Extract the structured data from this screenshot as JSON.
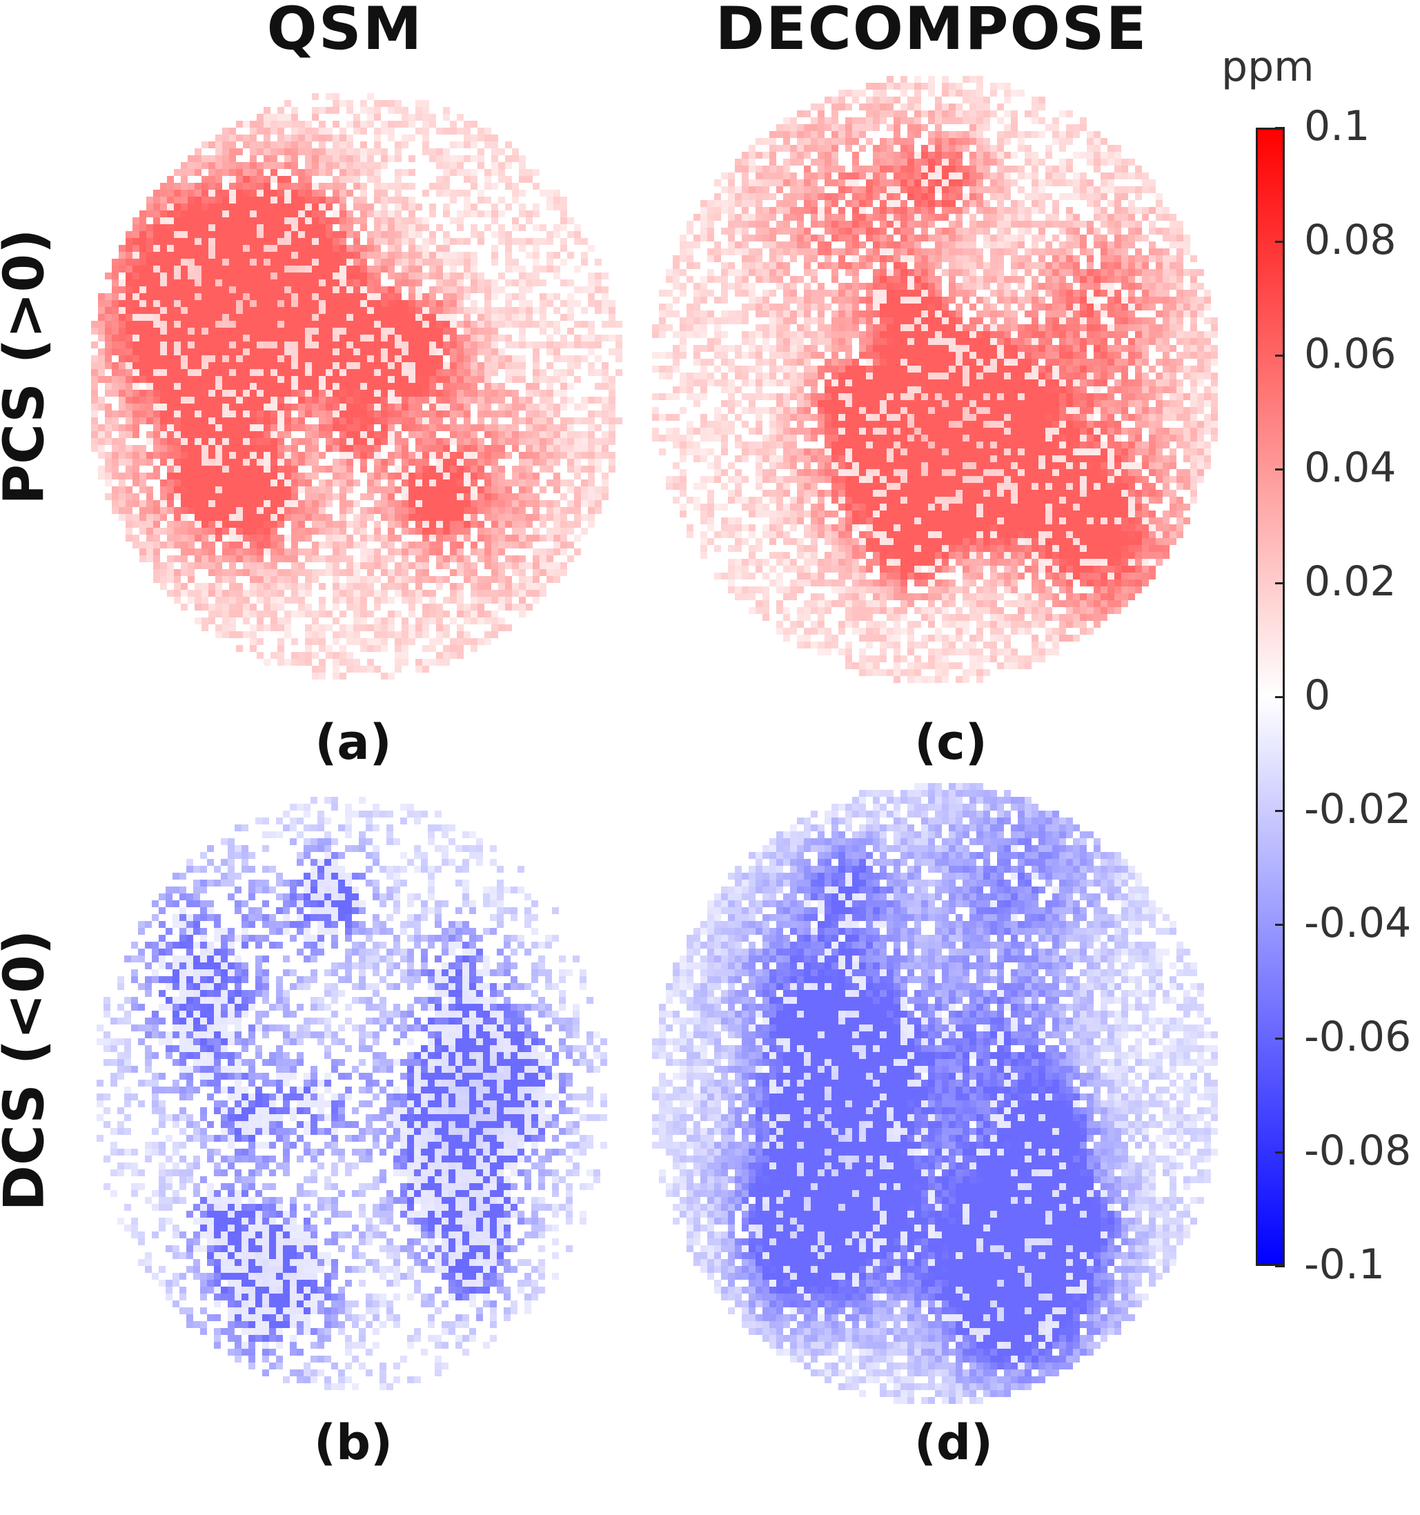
{
  "columns": {
    "qsm": "QSM",
    "decompose": "DECOMPOSE"
  },
  "rows": {
    "pcs": "PCS (>0)",
    "dcs": "DCS (<0)"
  },
  "panels": [
    {
      "id": "a",
      "label": "(a)",
      "kind": "positive",
      "color": "#ff2a2a"
    },
    {
      "id": "b",
      "label": "(b)",
      "kind": "negative",
      "color": "#3a3aff"
    },
    {
      "id": "c",
      "label": "(c)",
      "kind": "positive",
      "color": "#ff2a2a"
    },
    {
      "id": "d",
      "label": "(d)",
      "kind": "negative",
      "color": "#3a3aff"
    }
  ],
  "colorbar": {
    "unit": "ppm",
    "range": [
      -0.1,
      0.1
    ],
    "top_color": "#ff0000",
    "mid_color": "#ffffff",
    "bottom_color": "#0000ff",
    "ticks": [
      "0.1",
      "0.08",
      "0.06",
      "0.04",
      "0.02",
      "0",
      "-0.02",
      "-0.04",
      "-0.06",
      "-0.08",
      "-0.1"
    ]
  }
}
